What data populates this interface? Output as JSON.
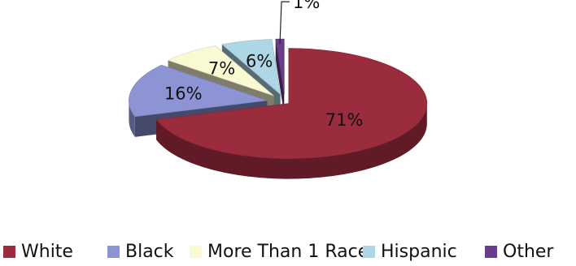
{
  "chart_data": {
    "type": "pie",
    "style": "3d-exploded",
    "title": "",
    "legend_position": "bottom",
    "slices": [
      {
        "label": "White",
        "value": 71,
        "display": "71%",
        "color": "#9b2c3e"
      },
      {
        "label": "Black",
        "value": 16,
        "display": "16%",
        "color": "#8c94d4"
      },
      {
        "label": "More Than 1 Race",
        "value": 7,
        "display": "7%",
        "color": "#fafad2"
      },
      {
        "label": "Hispanic",
        "value": 6,
        "display": "6%",
        "color": "#aed6e4"
      },
      {
        "label": "Other",
        "value": 1,
        "display": "1%",
        "color": "#6a3d8c"
      }
    ]
  }
}
